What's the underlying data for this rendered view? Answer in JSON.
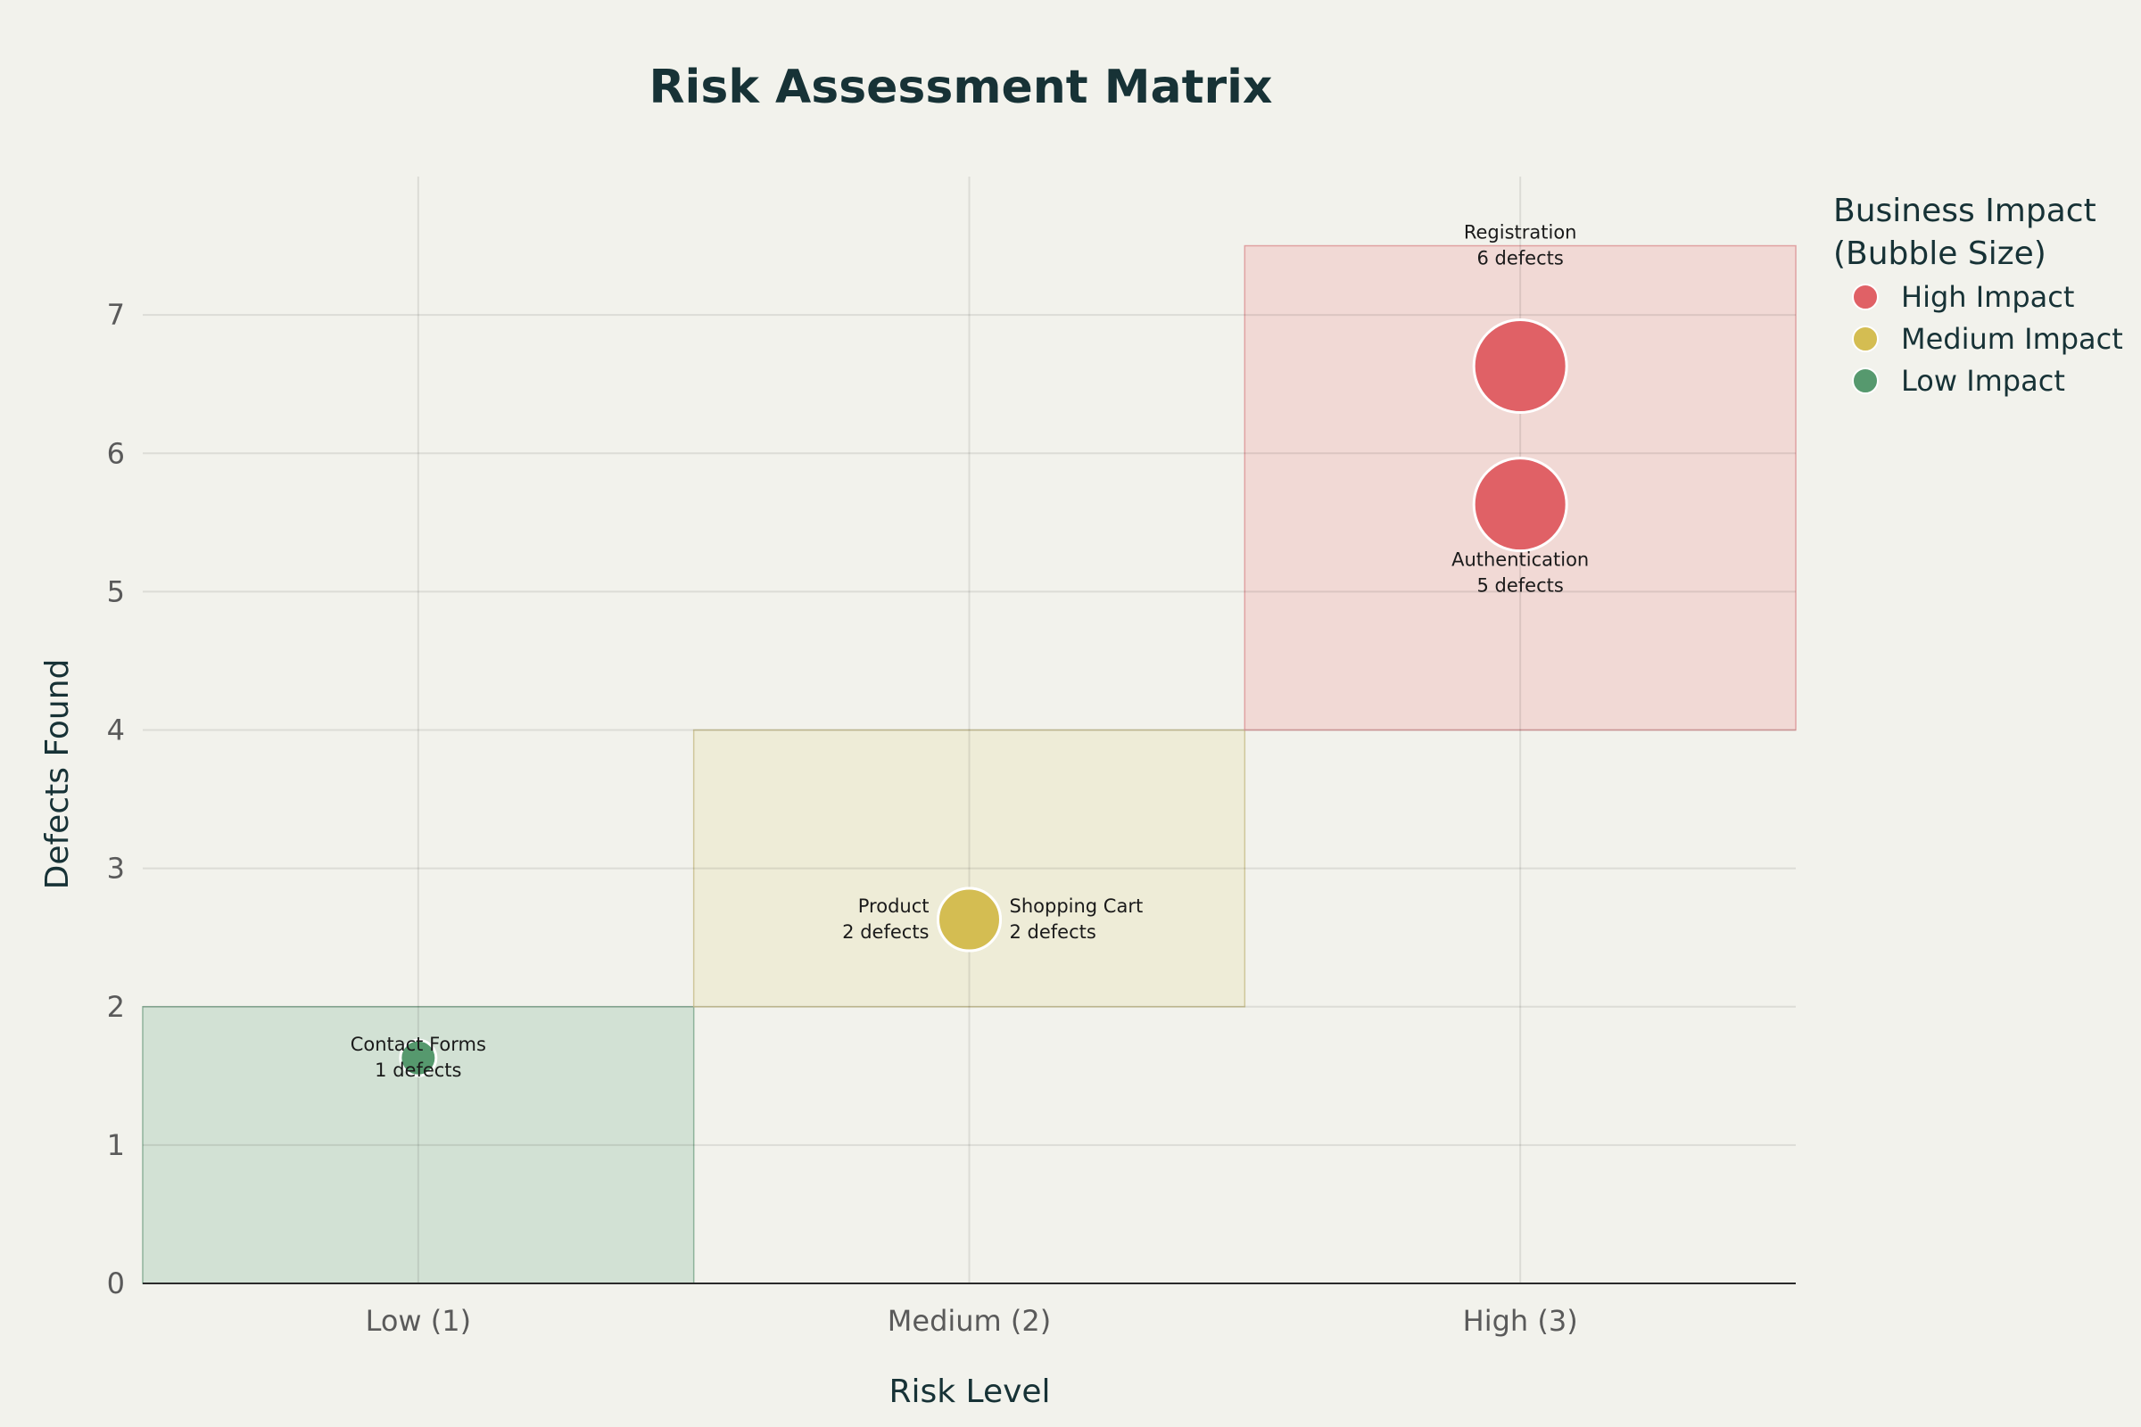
{
  "chart_data": {
    "type": "scatter",
    "title": "Risk Assessment Matrix",
    "xlabel": "Risk Level",
    "ylabel": "Defects Found",
    "x_categories": [
      "Low (1)",
      "Medium (2)",
      "High (3)"
    ],
    "xlim": [
      0.5,
      3.5
    ],
    "ylim": [
      0,
      8
    ],
    "yticks": [
      0,
      1,
      2,
      3,
      4,
      5,
      6,
      7
    ],
    "grid": true,
    "legend": {
      "title_line1": "Business Impact",
      "title_line2": "(Bubble Size)",
      "placement": "top-right outside",
      "entries": [
        {
          "name": "High Impact",
          "color": "#e06166"
        },
        {
          "name": "Medium Impact",
          "color": "#d4bd52"
        },
        {
          "name": "Low Impact",
          "color": "#56996e"
        }
      ]
    },
    "zones": [
      {
        "x0": 0.5,
        "x1": 1.5,
        "y0": 0,
        "y1": 2,
        "fill": "#bcd6c4",
        "stroke": "#8fb39b"
      },
      {
        "x0": 1.5,
        "x1": 2.5,
        "y0": 2,
        "y1": 4,
        "fill": "#ebe8c9",
        "stroke": "#cfc79b"
      },
      {
        "x0": 2.5,
        "x1": 3.5,
        "y0": 4,
        "y1": 7.5,
        "fill": "#f0c8c6",
        "stroke": "#e0a2a2"
      }
    ],
    "points": [
      {
        "name": "Registration",
        "defects_text": "6 defects",
        "x": 3,
        "y": 6.63,
        "impact": "High Impact",
        "size": 3,
        "label_pos": "top"
      },
      {
        "name": "Authentication",
        "defects_text": "5 defects",
        "x": 3,
        "y": 5.63,
        "impact": "High Impact",
        "size": 3,
        "label_pos": "bottom"
      },
      {
        "name": "Product",
        "defects_text": "2 defects",
        "x": 2,
        "y": 2.63,
        "impact": "Medium Impact",
        "size": 2,
        "label_pos": "left"
      },
      {
        "name": "Shopping Cart",
        "defects_text": "2 defects",
        "x": 2,
        "y": 2.63,
        "impact": "Medium Impact",
        "size": 2,
        "label_pos": "right"
      },
      {
        "name": "Contact Forms",
        "defects_text": "1 defects",
        "x": 1,
        "y": 1.63,
        "impact": "Low Impact",
        "size": 1,
        "label_pos": "center"
      }
    ]
  }
}
